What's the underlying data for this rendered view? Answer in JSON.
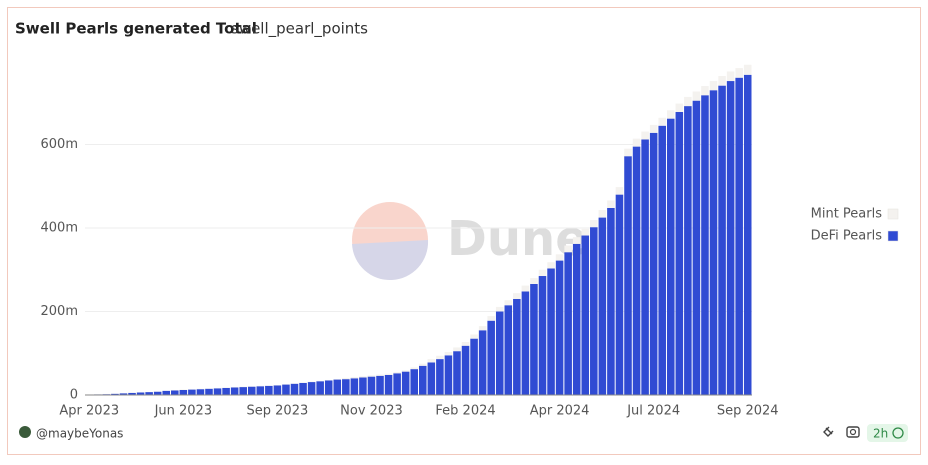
{
  "chart_data": {
    "type": "stacked_bar",
    "title": "Swell Pearls generated Total",
    "subtitle": "swell_pearl_points",
    "watermark": "Dune",
    "categories": [
      "Apr 2023",
      null,
      null,
      null,
      null,
      null,
      null,
      null,
      null,
      null,
      null,
      "Jun 2023",
      null,
      null,
      null,
      null,
      null,
      null,
      null,
      null,
      null,
      null,
      "Sep 2023",
      null,
      null,
      null,
      null,
      null,
      null,
      null,
      null,
      null,
      null,
      "Nov 2023",
      null,
      null,
      null,
      null,
      null,
      null,
      null,
      null,
      null,
      null,
      "Feb 2024",
      null,
      null,
      null,
      null,
      null,
      null,
      null,
      null,
      null,
      null,
      "Apr 2024",
      null,
      null,
      null,
      null,
      null,
      null,
      null,
      null,
      null,
      null,
      "Jul 2024",
      null,
      null,
      null,
      null,
      null,
      null,
      null,
      null,
      null,
      null,
      "Sep 2024"
    ],
    "series": [
      {
        "name": "DeFi Pearls",
        "color": "#304bd3",
        "values": [
          1,
          1.5,
          2,
          3,
          4,
          5,
          6,
          7,
          8,
          10,
          11,
          12,
          13,
          14,
          15,
          16,
          17,
          18,
          19,
          20,
          21,
          22,
          23,
          25,
          27,
          29,
          31,
          33,
          35,
          37,
          38,
          40,
          42,
          44,
          46,
          48,
          52,
          56,
          62,
          70,
          78,
          86,
          95,
          105,
          118,
          135,
          155,
          178,
          200,
          215,
          230,
          248,
          266,
          285,
          303,
          322,
          342,
          362,
          382,
          402,
          425,
          448,
          480,
          572,
          595,
          612,
          628,
          645,
          662,
          678,
          692,
          705,
          718,
          730,
          741,
          752,
          760,
          767
        ]
      },
      {
        "name": "Mint Pearls",
        "color": "#f4f2ef",
        "values": [
          0.5,
          0.5,
          0.5,
          0.5,
          0.5,
          0.5,
          0.5,
          0.5,
          0.5,
          0.5,
          1,
          1,
          1,
          1,
          1,
          1,
          1,
          1,
          1,
          1,
          1,
          1,
          1,
          1,
          1,
          1,
          1,
          1,
          1,
          1,
          3,
          3,
          3,
          3,
          3,
          3,
          3,
          3,
          4,
          5,
          8,
          8,
          8,
          9,
          9,
          10,
          10,
          11,
          11,
          12,
          14,
          14,
          14,
          15,
          15,
          15,
          16,
          16,
          16,
          17,
          18,
          18,
          18,
          18,
          19,
          19,
          19,
          19,
          20,
          20,
          22,
          22,
          22,
          22,
          23,
          23,
          23,
          24
        ]
      }
    ],
    "legend_order": [
      1,
      0
    ],
    "ylim": [
      0,
      800
    ],
    "yticks": [
      0,
      {
        "value": 200,
        "label": "200m"
      },
      {
        "value": 400,
        "label": "400m"
      },
      {
        "value": 600,
        "label": "600m"
      }
    ],
    "grid": true
  },
  "footer": {
    "author": "@maybeYonas",
    "age": "2h"
  }
}
